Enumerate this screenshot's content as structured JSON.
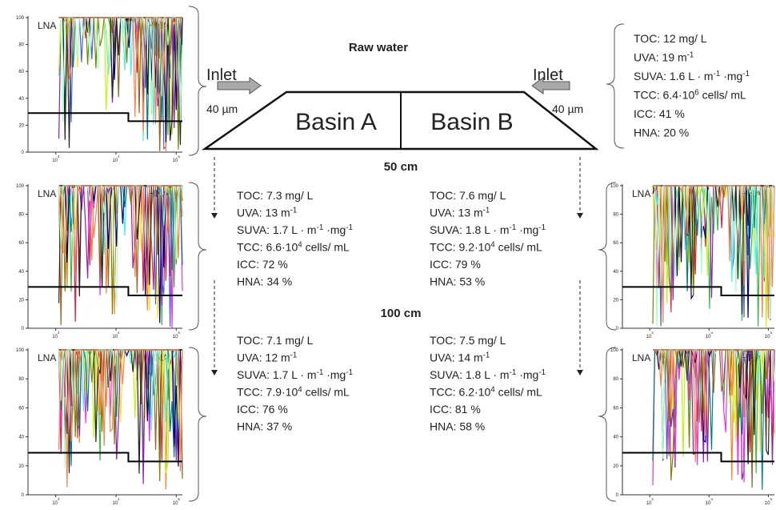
{
  "title": "Raw water",
  "inlets": [
    {
      "label": "Inlet",
      "size": "40 µm"
    },
    {
      "label": "Inlet",
      "size": "40 µm"
    }
  ],
  "basins": [
    "Basin A",
    "Basin B"
  ],
  "depths": [
    "50 cm",
    "100 cm"
  ],
  "raw_water": [
    [
      "TOC: 12 mg/ L"
    ],
    [
      "UVA: 19 m",
      "-1"
    ],
    [
      "SUVA: 1.6 L · m",
      "-1",
      " ·mg",
      "-1"
    ],
    [
      "TCC: 6.4·10",
      "6",
      " cells/ mL"
    ],
    [
      "ICC: 41 %"
    ],
    [
      "HNA: 20 %"
    ]
  ],
  "basin_a_50": [
    [
      "TOC: 7.3 mg/ L"
    ],
    [
      "UVA: 13 m",
      "-1"
    ],
    [
      "SUVA: 1.7 L · m",
      "-1",
      " ·mg",
      "-1"
    ],
    [
      "TCC: 6.6·10",
      "4",
      " cells/ mL"
    ],
    [
      "ICC: 72 %"
    ],
    [
      "HNA: 34 %"
    ]
  ],
  "basin_b_50": [
    [
      "TOC: 7.6 mg/ L"
    ],
    [
      "UVA: 13 m",
      "-1"
    ],
    [
      "SUVA: 1.8 L · m",
      "-1",
      " ·mg",
      "-1"
    ],
    [
      "TCC: 9.2·10",
      "4",
      " cells/ mL"
    ],
    [
      "ICC: 79 %"
    ],
    [
      "HNA: 53 %"
    ]
  ],
  "basin_a_100": [
    [
      "TOC: 7.1 mg/ L"
    ],
    [
      "UVA: 12 m",
      "-1"
    ],
    [
      "SUVA: 1.7 L · m",
      "-1",
      " ·mg",
      "-1"
    ],
    [
      "TCC: 7.9·10",
      "4",
      " cells/ mL"
    ],
    [
      "ICC: 76 %"
    ],
    [
      "HNA: 37 %"
    ]
  ],
  "basin_b_100": [
    [
      "TOC: 7.5 mg/ L"
    ],
    [
      "UVA: 14 m",
      "-1"
    ],
    [
      "SUVA: 1.8 L · m",
      "-1",
      " ·mg",
      "-1"
    ],
    [
      "TCC: 6.2·10",
      "4",
      " cells/ mL"
    ],
    [
      "ICC: 81 %"
    ],
    [
      "HNA: 58 %"
    ]
  ],
  "histogram": {
    "gates": [
      "LNA",
      "HNA"
    ],
    "yticks": [
      0,
      20,
      40,
      60,
      80,
      100
    ],
    "xticks": [
      [
        "10",
        "3"
      ],
      [
        "10",
        "4"
      ],
      [
        "10",
        "5"
      ]
    ]
  }
}
